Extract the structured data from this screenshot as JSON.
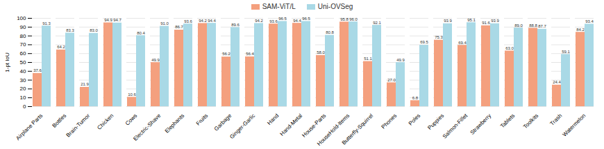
{
  "chart_data": {
    "type": "bar",
    "y_label": "1-pt IoU",
    "categories": [
      "Airplane Parts",
      "Bottles",
      "Brain-Tumor",
      "Chicken",
      "Cows",
      "Electric-Shave",
      "Elephants",
      "Fruits",
      "Garbage",
      "Ginger-Garlic",
      "Hand",
      "Hand-Metal",
      "House-Parts",
      "HouseHold-Items",
      "Butterfly-Squirrel",
      "Phones",
      "Poles",
      "Puppies",
      "Salmon-Fillet",
      "Strawberry",
      "Tablets",
      "Toolkits",
      "Trash",
      "Watermelon"
    ],
    "series": [
      {
        "name": "SAM-ViT/L",
        "color": "#f4a07e",
        "values": [
          37.6,
          64.2,
          21.9,
          94.9,
          10.6,
          49.9,
          86.7,
          94.2,
          56.2,
          56.4,
          93.6,
          94.4,
          58.0,
          95.8,
          51.1,
          27.0,
          6.8,
          75.3,
          69.4,
          91.6,
          63.0,
          88.8,
          24.4,
          84.2
        ],
        "value_labels": [
          "37.6",
          "64.2",
          "21.9",
          "94.9",
          "10.6",
          "49.9",
          "86.7",
          "94.2",
          "56.2",
          "56.4",
          "93.6",
          "94.4",
          "58.0",
          "95.8",
          "51.1",
          "27.0",
          "6.8",
          "75.3",
          "69.4",
          "91.6",
          "63.0",
          "88.8",
          "24.4",
          "84.2"
        ]
      },
      {
        "name": "Uni-OVSeg",
        "color": "#a9d9e6",
        "values": [
          91.3,
          83.3,
          83.0,
          94.7,
          80.4,
          91.0,
          93.6,
          94.4,
          89.6,
          94.2,
          96.5,
          96.5,
          80.8,
          96.0,
          92.1,
          49.9,
          69.5,
          93.9,
          95.1,
          93.9,
          89.0,
          87.7,
          59.1,
          93.4
        ],
        "value_labels": [
          "91.3",
          "83.3",
          "83.0",
          "94.7",
          "80.4",
          "91.0",
          "93.6",
          "94.4",
          "89.6",
          "94.2",
          "96.5",
          "96.5",
          "80.8",
          "96.0",
          "92.1",
          "49.9",
          "69.5",
          "93.9",
          "95.1",
          "93.9",
          "89.0",
          "87.7",
          "59.1",
          "93.4"
        ]
      }
    ],
    "ylim": [
      0,
      100
    ],
    "yticks": [
      0,
      10,
      20,
      30,
      40,
      50,
      60,
      70,
      80,
      90,
      100
    ],
    "grid": true,
    "legend": "top",
    "data_labels": true
  }
}
